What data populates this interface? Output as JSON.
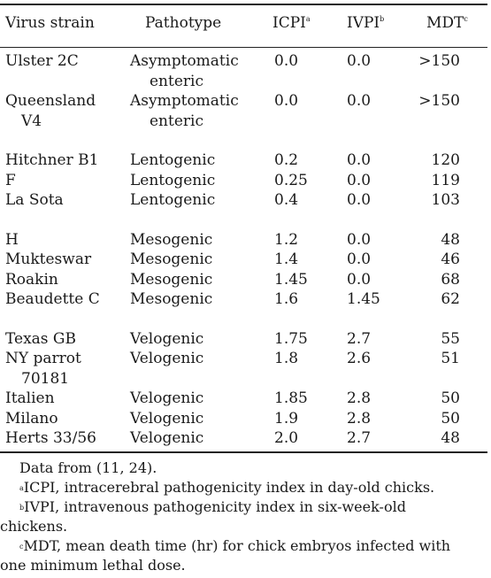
{
  "header": {
    "strain": "Virus strain",
    "pathotype": "Pathotype",
    "icpi": "ICPI",
    "icpi_mark": "a",
    "ivpi": "IVPI",
    "ivpi_mark": "b",
    "mdt": "MDT",
    "mdt_mark": "c"
  },
  "rows": [
    {
      "strain1": "Ulster 2C",
      "strain2": "",
      "path1": "Asymptomatic",
      "path2": "enteric",
      "icpi": "0.0",
      "ivpi": "0.0",
      "mdt": ">150"
    },
    {
      "strain1": "Queensland",
      "strain2": "V4",
      "path1": "Asymptomatic",
      "path2": "enteric",
      "icpi": "0.0",
      "ivpi": "0.0",
      "mdt": ">150"
    },
    {
      "strain1": "Hitchner B1",
      "strain2": "",
      "path1": "Lentogenic",
      "path2": "",
      "icpi": "0.2",
      "ivpi": "0.0",
      "mdt": "120"
    },
    {
      "strain1": "F",
      "strain2": "",
      "path1": "Lentogenic",
      "path2": "",
      "icpi": "0.25",
      "ivpi": "0.0",
      "mdt": "119"
    },
    {
      "strain1": "La Sota",
      "strain2": "",
      "path1": "Lentogenic",
      "path2": "",
      "icpi": "0.4",
      "ivpi": "0.0",
      "mdt": "103"
    },
    {
      "strain1": "H",
      "strain2": "",
      "path1": "Mesogenic",
      "path2": "",
      "icpi": "1.2",
      "ivpi": "0.0",
      "mdt": "48"
    },
    {
      "strain1": "Mukteswar",
      "strain2": "",
      "path1": "Mesogenic",
      "path2": "",
      "icpi": "1.4",
      "ivpi": "0.0",
      "mdt": "46"
    },
    {
      "strain1": "Roakin",
      "strain2": "",
      "path1": "Mesogenic",
      "path2": "",
      "icpi": "1.45",
      "ivpi": "0.0",
      "mdt": "68"
    },
    {
      "strain1": "Beaudette C",
      "strain2": "",
      "path1": "Mesogenic",
      "path2": "",
      "icpi": "1.6",
      "ivpi": "1.45",
      "mdt": "62"
    },
    {
      "strain1": "Texas GB",
      "strain2": "",
      "path1": "Velogenic",
      "path2": "",
      "icpi": "1.75",
      "ivpi": "2.7",
      "mdt": "55"
    },
    {
      "strain1": "NY parrot",
      "strain2": "70181",
      "path1": "Velogenic",
      "path2": "",
      "icpi": "1.8",
      "ivpi": "2.6",
      "mdt": "51"
    },
    {
      "strain1": "Italien",
      "strain2": "",
      "path1": "Velogenic",
      "path2": "",
      "icpi": "1.85",
      "ivpi": "2.8",
      "mdt": "50"
    },
    {
      "strain1": "Milano",
      "strain2": "",
      "path1": "Velogenic",
      "path2": "",
      "icpi": "1.9",
      "ivpi": "2.8",
      "mdt": "50"
    },
    {
      "strain1": "Herts 33/56",
      "strain2": "",
      "path1": "Velogenic",
      "path2": "",
      "icpi": "2.0",
      "ivpi": "2.7",
      "mdt": "48"
    }
  ],
  "notes": {
    "source": "Data from (11, 24).",
    "a_mark": "a",
    "a_text": "ICPI, intracerebral pathogenicity index in day-old chicks.",
    "b_mark": "b",
    "b_text1": "IVPI, intravenous pathogenicity index in six-week-old",
    "b_text2": "chickens.",
    "c_mark": "c",
    "c_text1": "MDT, mean death time (hr) for chick embryos infected with",
    "c_text2": "one minimum lethal dose."
  }
}
